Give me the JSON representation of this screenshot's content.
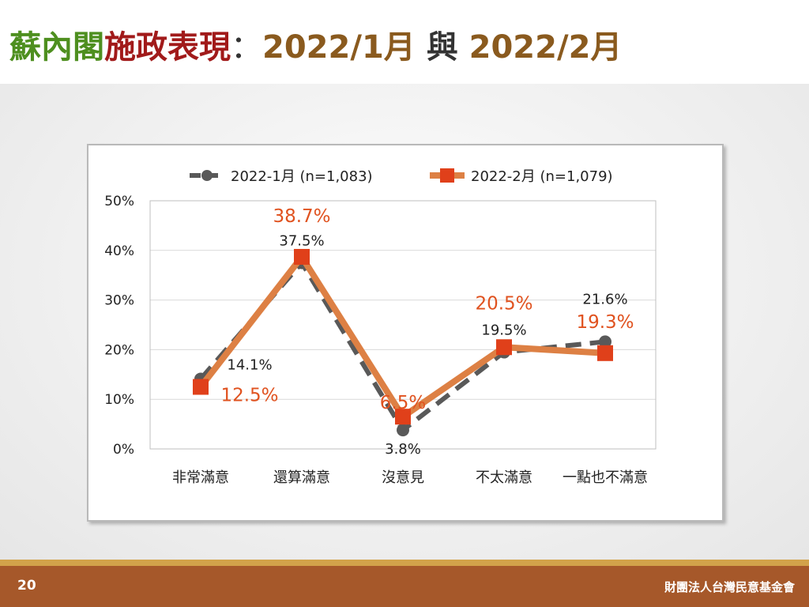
{
  "slide": {
    "title_part1": "蘇內閣",
    "title_part2": "施政表現",
    "title_part3": "：",
    "title_part4": "2022/1月",
    "title_part5": " 與 ",
    "title_part6": "2022/2月",
    "page_number": "20",
    "organization": "財團法人台灣民意基金會"
  },
  "colors": {
    "series1": "#595959",
    "series2": "#dd8044",
    "series2_marker": "#e0401a",
    "series2_label": "#e0521f",
    "series1_label": "#222222",
    "footer": "#a6582a",
    "footer_line": "#d2a24a"
  },
  "chart_data": {
    "type": "line",
    "categories": [
      "非常滿意",
      "還算滿意",
      "沒意見",
      "不太滿意",
      "一點也不滿意"
    ],
    "series": [
      {
        "name": "2022-1月  (n=1,083)",
        "values": [
          14.1,
          37.5,
          3.8,
          19.5,
          21.6
        ],
        "labels": [
          "14.1%",
          "37.5%",
          "3.8%",
          "19.5%",
          "21.6%"
        ],
        "style": "dashed",
        "marker": "circle"
      },
      {
        "name": "2022-2月  (n=1,079)",
        "values": [
          12.5,
          38.7,
          6.5,
          20.5,
          19.3
        ],
        "labels": [
          "12.5%",
          "38.7%",
          "6.5%",
          "20.5%",
          "19.3%"
        ],
        "style": "solid",
        "marker": "square"
      }
    ],
    "yticks": [
      "0%",
      "10%",
      "20%",
      "30%",
      "40%",
      "50%"
    ],
    "ylim": [
      0,
      50
    ],
    "grid": true,
    "legend_position": "top"
  }
}
